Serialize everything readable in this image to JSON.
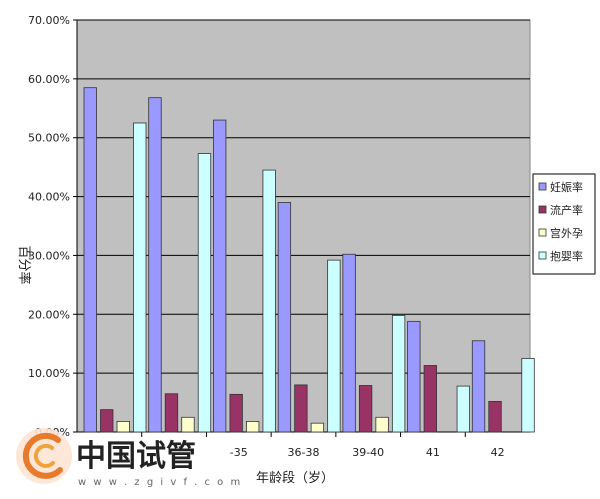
{
  "chart_data": {
    "type": "bar",
    "xlabel": "年龄段（岁）",
    "ylabel": "百分率",
    "ylim": [
      0,
      70
    ],
    "yticks": [
      "0.00%",
      "10.00%",
      "20.00%",
      "30.00%",
      "40.00%",
      "50.00%",
      "60.00%",
      "70.00%"
    ],
    "grid": true,
    "legend_position": "right",
    "categories": [
      "",
      "",
      "-35",
      "36-38",
      "39-40",
      "41",
      "42"
    ],
    "series": [
      {
        "name": "妊娠率",
        "color": "#9999ff",
        "values": [
          58.5,
          56.8,
          53.0,
          39.0,
          30.2,
          18.8,
          15.5
        ]
      },
      {
        "name": "流产率",
        "color": "#993366",
        "values": [
          3.8,
          6.5,
          6.4,
          8.0,
          7.9,
          11.3,
          5.2
        ]
      },
      {
        "name": "宫外孕",
        "color": "#ffffcc",
        "values": [
          1.8,
          2.5,
          1.8,
          1.5,
          2.5,
          0.0,
          0.0
        ]
      },
      {
        "name": "抱婴率",
        "color": "#ccffff",
        "values": [
          52.5,
          47.3,
          44.5,
          29.2,
          19.8,
          7.8,
          12.5
        ]
      }
    ]
  },
  "watermark": {
    "text": "中国试管",
    "url": "w w w . z g i v f . c o m"
  }
}
